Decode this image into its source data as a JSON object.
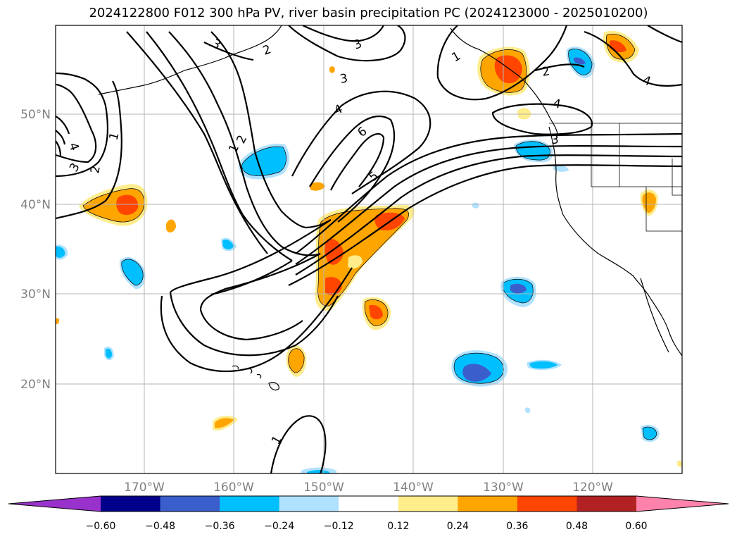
{
  "title": "2024122800 F012 300 hPa PV, river basin precipitation PC (2024123000 - 2025010200)",
  "map": {
    "lat_ticks": [
      "50°N",
      "40°N",
      "30°N",
      "20°N"
    ],
    "lon_ticks": [
      "170°W",
      "160°W",
      "150°W",
      "140°W",
      "130°W",
      "120°W"
    ],
    "pv_contour_labels": [
      "4",
      "2",
      "3",
      "3",
      "4",
      "6",
      "5",
      "2",
      "1",
      "1",
      "3",
      "2",
      "1",
      "3",
      "2",
      "4",
      "4",
      "3",
      "4",
      "1"
    ]
  },
  "colorbar": {
    "labels": [
      "−0.60",
      "−0.48",
      "−0.36",
      "−0.24",
      "−0.12",
      "0.12",
      "0.24",
      "0.36",
      "0.48",
      "0.60"
    ],
    "colors": [
      "#9932cc",
      "#00008b",
      "#3a5fcd",
      "#00bfff",
      "#b0e2ff",
      "#ffffff",
      "#ffec8b",
      "#ffa500",
      "#ff4500",
      "#b22222",
      "#ff82ab"
    ]
  }
}
